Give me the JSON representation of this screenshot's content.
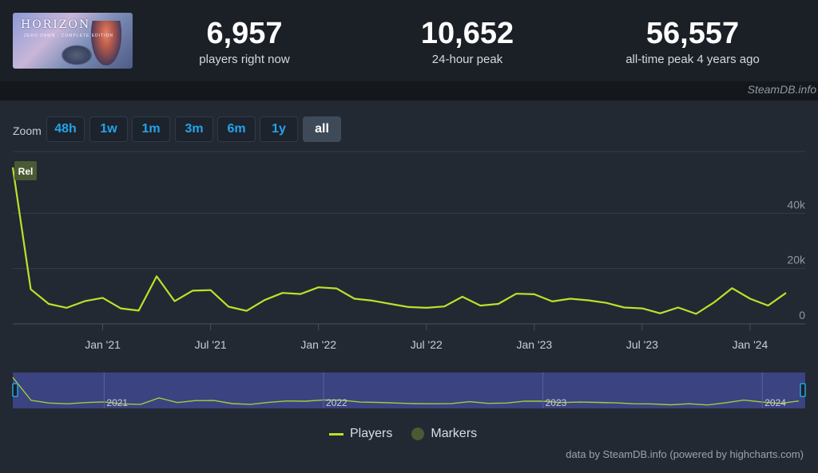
{
  "header": {
    "game_logo_text": "HORIZON",
    "game_logo_sub": "ZERO DAWN · COMPLETE EDITION",
    "stats": [
      {
        "value": "6,957",
        "label": "players right now"
      },
      {
        "value": "10,652",
        "label": "24-hour peak"
      },
      {
        "value": "56,557",
        "label": "all-time peak 4 years ago"
      }
    ]
  },
  "watermark": "SteamDB.info",
  "zoom": {
    "label": "Zoom",
    "options": [
      "48h",
      "1w",
      "1m",
      "3m",
      "6m",
      "1y",
      "all"
    ],
    "active": "all"
  },
  "chart_data": {
    "type": "line",
    "series": [
      {
        "name": "Players",
        "color": "#b9e32a",
        "points": [
          [
            "2020-08",
            56557
          ],
          [
            "2020-09",
            12500
          ],
          [
            "2020-10",
            7200
          ],
          [
            "2020-11",
            5800
          ],
          [
            "2020-12",
            8200
          ],
          [
            "2021-01",
            9400
          ],
          [
            "2021-02",
            5600
          ],
          [
            "2021-03",
            4800
          ],
          [
            "2021-04",
            17200
          ],
          [
            "2021-05",
            8200
          ],
          [
            "2021-06",
            12000
          ],
          [
            "2021-07",
            12200
          ],
          [
            "2021-08",
            6200
          ],
          [
            "2021-09",
            4700
          ],
          [
            "2021-10",
            8600
          ],
          [
            "2021-11",
            11200
          ],
          [
            "2021-12",
            10800
          ],
          [
            "2022-01",
            13200
          ],
          [
            "2022-02",
            12800
          ],
          [
            "2022-03",
            9100
          ],
          [
            "2022-04",
            8400
          ],
          [
            "2022-05",
            7200
          ],
          [
            "2022-06",
            6100
          ],
          [
            "2022-07",
            5800
          ],
          [
            "2022-08",
            6300
          ],
          [
            "2022-09",
            9800
          ],
          [
            "2022-10",
            6600
          ],
          [
            "2022-11",
            7200
          ],
          [
            "2022-12",
            10900
          ],
          [
            "2023-01",
            10700
          ],
          [
            "2023-02",
            8100
          ],
          [
            "2023-03",
            9100
          ],
          [
            "2023-04",
            8500
          ],
          [
            "2023-05",
            7600
          ],
          [
            "2023-06",
            5900
          ],
          [
            "2023-07",
            5600
          ],
          [
            "2023-08",
            3800
          ],
          [
            "2023-09",
            5900
          ],
          [
            "2023-10",
            3600
          ],
          [
            "2023-11",
            7800
          ],
          [
            "2023-12",
            12900
          ],
          [
            "2024-01",
            9100
          ],
          [
            "2024-02",
            6600
          ],
          [
            "2024-03",
            11200
          ]
        ]
      }
    ],
    "markers": [
      {
        "date": "2020-08",
        "label": "Rel",
        "color": "#4a5a33"
      }
    ],
    "x_ticks": [
      {
        "date": "2021-01",
        "label": "Jan '21"
      },
      {
        "date": "2021-07",
        "label": "Jul '21"
      },
      {
        "date": "2022-01",
        "label": "Jan '22"
      },
      {
        "date": "2022-07",
        "label": "Jul '22"
      },
      {
        "date": "2023-01",
        "label": "Jan '23"
      },
      {
        "date": "2023-07",
        "label": "Jul '23"
      },
      {
        "date": "2024-01",
        "label": "Jan '24"
      }
    ],
    "y_ticks": [
      {
        "value": 0,
        "label": "0"
      },
      {
        "value": 20000,
        "label": "20k"
      },
      {
        "value": 40000,
        "label": "40k"
      }
    ],
    "xlim": [
      "2020-08",
      "2024-03"
    ],
    "ylim": [
      0,
      60000
    ],
    "grid": true,
    "navigator": {
      "year_labels": [
        {
          "date": "2021-01",
          "label": "2021"
        },
        {
          "date": "2022-01",
          "label": "2022"
        },
        {
          "date": "2023-01",
          "label": "2023"
        },
        {
          "date": "2024-01",
          "label": "2024"
        }
      ],
      "background": "#3b4380"
    },
    "legend": {
      "position": "bottom-center",
      "items": [
        {
          "name": "Players",
          "color": "#b9e32a"
        },
        {
          "name": "Markers",
          "color": "#4a5a33"
        }
      ]
    }
  },
  "credits": "data by SteamDB.info (powered by highcharts.com)"
}
